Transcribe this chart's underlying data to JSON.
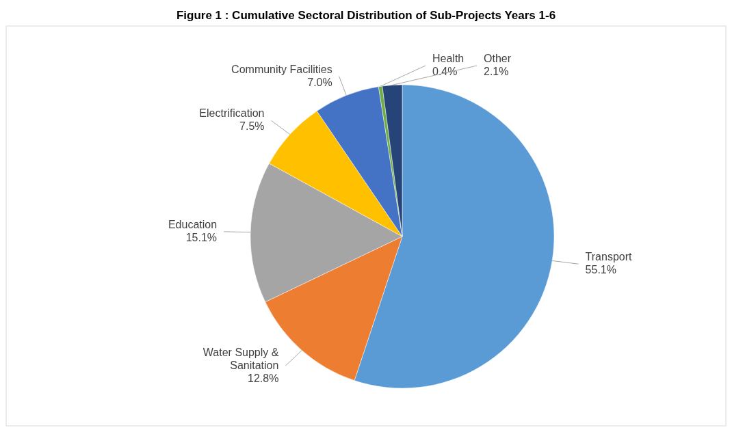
{
  "chart_data": {
    "type": "pie",
    "title": "Figure 1 : Cumulative Sectoral Distribution of Sub-Projects Years 1-6",
    "categories": [
      "Transport",
      "Water Supply & Sanitation",
      "Education",
      "Electrification",
      "Community Facilities",
      "Health",
      "Other"
    ],
    "values": [
      55.1,
      12.8,
      15.1,
      7.5,
      7.0,
      0.4,
      2.1
    ],
    "value_labels": [
      "55.1%",
      "12.8%",
      "15.1%",
      "7.5%",
      "7.0%",
      "0.4%",
      "2.1%"
    ],
    "colors": [
      "#5b9bd5",
      "#ed7d31",
      "#a5a5a5",
      "#ffc000",
      "#4472c4",
      "#70ad47",
      "#264478"
    ],
    "legend": false
  }
}
